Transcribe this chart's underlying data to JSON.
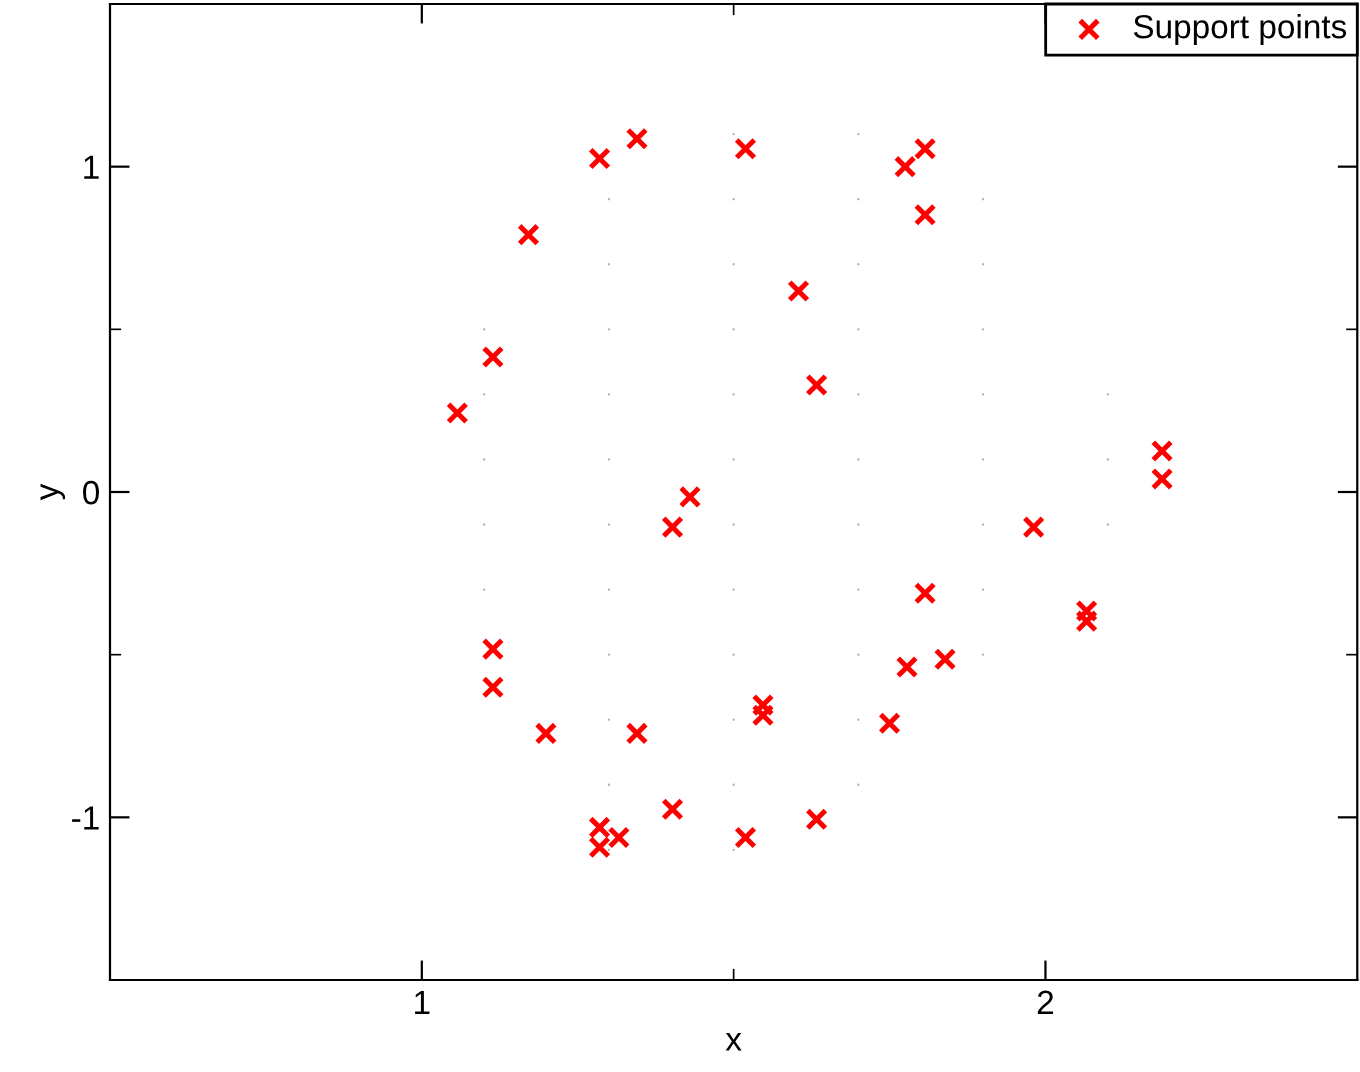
{
  "chart_data": {
    "type": "scatter",
    "xlabel": "x",
    "ylabel": "y",
    "xlim": [
      0.5,
      2.5
    ],
    "ylim": [
      -1.5,
      1.5
    ],
    "xticks": [
      1,
      {
        "value": 1.5,
        "label": null
      },
      2
    ],
    "yticks": [
      -1,
      {
        "value": -0.5,
        "label": null
      },
      0,
      {
        "value": 0.5,
        "label": null
      },
      1
    ],
    "grid": false,
    "legend": "top right",
    "series": [
      {
        "color": "#b4b4b4",
        "marker": "circle",
        "x": [
          1.5,
          1.7,
          1.3,
          1.5,
          1.7,
          1.9,
          1.3,
          1.5,
          1.7,
          1.9,
          1.1,
          1.3,
          1.5,
          1.7,
          1.9,
          1.1,
          1.3,
          1.5,
          1.7,
          1.9,
          2.1,
          1.1,
          1.3,
          1.5,
          1.7,
          1.9,
          2.1,
          1.1,
          1.3,
          1.5,
          1.7,
          1.9,
          2.1,
          1.1,
          1.3,
          1.5,
          1.7,
          1.9,
          1.3,
          1.5,
          1.7,
          1.9,
          1.3,
          1.5,
          1.7,
          1.3,
          1.5,
          1.7,
          1.3,
          1.5
        ],
        "values": [
          1.1,
          1.1,
          0.9,
          0.9,
          0.9,
          0.9,
          0.7,
          0.7,
          0.7,
          0.7,
          0.5,
          0.5,
          0.5,
          0.5,
          0.5,
          0.3,
          0.3,
          0.3,
          0.3,
          0.3,
          0.3,
          0.1,
          0.1,
          0.1,
          0.1,
          0.1,
          0.1,
          -0.1,
          -0.1,
          -0.1,
          -0.1,
          -0.1,
          -0.1,
          -0.3,
          -0.3,
          -0.3,
          -0.3,
          -0.3,
          -0.5,
          -0.5,
          -0.5,
          -0.5,
          -0.7,
          -0.7,
          -0.7,
          -0.9,
          -0.9,
          -0.9,
          -1.1,
          -1.1
        ]
      },
      {
        "name": "Support points",
        "color": "#ff0000",
        "marker": "cross",
        "x": [
          1.285,
          1.345,
          1.519,
          1.775,
          1.807,
          1.807,
          1.171,
          1.604,
          1.633,
          1.114,
          1.057,
          2.187,
          2.187,
          1.43,
          1.402,
          1.981,
          1.807,
          2.066,
          2.066,
          1.114,
          1.114,
          1.839,
          1.778,
          1.547,
          1.547,
          1.75,
          1.199,
          1.345,
          1.402,
          1.633,
          1.285,
          1.316,
          1.285,
          1.519
        ],
        "values": [
          1.025,
          1.086,
          1.055,
          1.0,
          1.055,
          0.852,
          0.791,
          0.618,
          0.329,
          0.415,
          0.243,
          0.126,
          0.04,
          -0.015,
          -0.108,
          -0.108,
          -0.311,
          -0.366,
          -0.397,
          -0.483,
          -0.6,
          -0.514,
          -0.538,
          -0.655,
          -0.686,
          -0.711,
          -0.742,
          -0.742,
          -0.975,
          -1.006,
          -1.031,
          -1.062,
          -1.092,
          -1.062
        ]
      }
    ]
  }
}
